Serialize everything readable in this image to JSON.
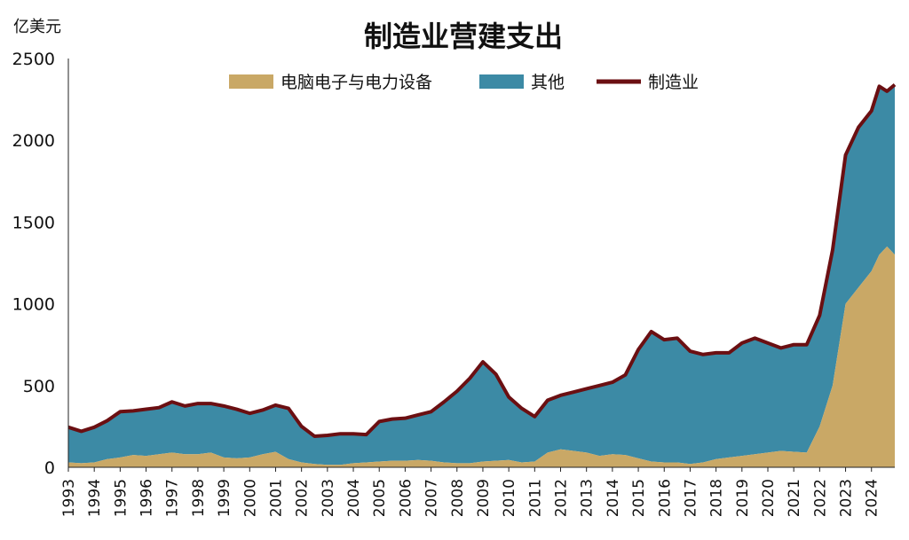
{
  "chart_data": {
    "type": "area",
    "title": "制造业营建支出",
    "ylabel": "亿美元",
    "ylim": [
      0,
      2500
    ],
    "yticks": [
      0,
      500,
      1000,
      1500,
      2000,
      2500
    ],
    "x_tick_labels": [
      "1993",
      "1994",
      "1995",
      "1996",
      "1997",
      "1998",
      "1999",
      "2000",
      "2001",
      "2002",
      "2003",
      "2004",
      "2005",
      "2006",
      "2007",
      "2008",
      "2009",
      "2010",
      "2011",
      "2012",
      "2013",
      "2014",
      "2015",
      "2016",
      "2017",
      "2018",
      "2019",
      "2020",
      "2021",
      "2022",
      "2023",
      "2024"
    ],
    "xlim": [
      1993.0,
      2024.9
    ],
    "legend": {
      "position": "top"
    },
    "colors": {
      "computer_electronic": "#C9A866",
      "other": "#3C8AA5",
      "manufacturing": "#6B0F12"
    },
    "x": [
      1993.0,
      1993.5,
      1994.0,
      1994.5,
      1995.0,
      1995.5,
      1996.0,
      1996.5,
      1997.0,
      1997.5,
      1998.0,
      1998.5,
      1999.0,
      1999.5,
      2000.0,
      2000.5,
      2001.0,
      2001.5,
      2002.0,
      2002.5,
      2003.0,
      2003.5,
      2004.0,
      2004.5,
      2005.0,
      2005.5,
      2006.0,
      2006.5,
      2007.0,
      2007.5,
      2008.0,
      2008.5,
      2009.0,
      2009.5,
      2010.0,
      2010.5,
      2011.0,
      2011.5,
      2012.0,
      2012.5,
      2013.0,
      2013.5,
      2014.0,
      2014.5,
      2015.0,
      2015.5,
      2016.0,
      2016.5,
      2017.0,
      2017.5,
      2018.0,
      2018.5,
      2019.0,
      2019.5,
      2020.0,
      2020.5,
      2021.0,
      2021.5,
      2022.0,
      2022.5,
      2023.0,
      2023.5,
      2024.0,
      2024.3,
      2024.6,
      2024.9
    ],
    "series": [
      {
        "name": "电脑电子与电力设备",
        "type": "area",
        "values": [
          30,
          25,
          30,
          50,
          60,
          75,
          70,
          80,
          90,
          80,
          80,
          90,
          60,
          55,
          60,
          80,
          95,
          50,
          30,
          20,
          15,
          15,
          25,
          30,
          35,
          40,
          40,
          45,
          40,
          30,
          25,
          25,
          35,
          40,
          45,
          30,
          35,
          90,
          110,
          100,
          90,
          70,
          80,
          75,
          55,
          35,
          30,
          30,
          20,
          30,
          50,
          60,
          70,
          80,
          90,
          100,
          95,
          90,
          250,
          500,
          1000,
          1100,
          1200,
          1300,
          1350,
          1300
        ]
      },
      {
        "name": "其他",
        "type": "area",
        "values": [
          215,
          195,
          215,
          235,
          280,
          270,
          285,
          285,
          310,
          295,
          310,
          300,
          315,
          300,
          270,
          270,
          285,
          310,
          220,
          170,
          180,
          190,
          180,
          170,
          245,
          255,
          260,
          275,
          300,
          370,
          440,
          520,
          610,
          530,
          385,
          330,
          275,
          320,
          330,
          360,
          390,
          430,
          440,
          490,
          665,
          795,
          750,
          760,
          690,
          660,
          650,
          640,
          690,
          710,
          670,
          630,
          655,
          660,
          680,
          830,
          910,
          980,
          980,
          1030,
          950,
          1040
        ]
      },
      {
        "name": "制造业",
        "type": "line",
        "values": [
          245,
          220,
          245,
          285,
          340,
          345,
          355,
          365,
          400,
          375,
          390,
          390,
          375,
          355,
          330,
          350,
          380,
          360,
          250,
          190,
          195,
          205,
          205,
          200,
          280,
          295,
          300,
          320,
          340,
          400,
          465,
          545,
          645,
          570,
          430,
          360,
          310,
          410,
          440,
          460,
          480,
          500,
          520,
          565,
          720,
          830,
          780,
          790,
          710,
          690,
          700,
          700,
          760,
          790,
          760,
          730,
          750,
          750,
          930,
          1330,
          1910,
          2080,
          2180,
          2330,
          2300,
          2340
        ]
      }
    ]
  }
}
